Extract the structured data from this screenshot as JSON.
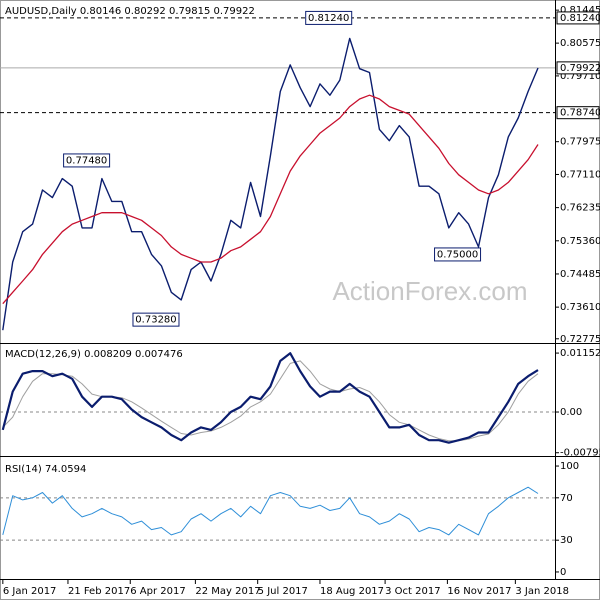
{
  "chart_data": [
    {
      "type": "line",
      "title": "AUDUSD,Daily  0.80146 0.80292 0.79815 0.79922",
      "watermark": "ActionForex.com",
      "x": [
        "2017-01-06",
        "2017-01-13",
        "2017-01-20",
        "2017-01-27",
        "2017-02-03",
        "2017-02-10",
        "2017-02-17",
        "2017-02-24",
        "2017-03-03",
        "2017-03-10",
        "2017-03-17",
        "2017-03-24",
        "2017-03-31",
        "2017-04-07",
        "2017-04-14",
        "2017-04-21",
        "2017-04-28",
        "2017-05-05",
        "2017-05-12",
        "2017-05-19",
        "2017-05-26",
        "2017-06-02",
        "2017-06-09",
        "2017-06-16",
        "2017-06-23",
        "2017-06-30",
        "2017-07-07",
        "2017-07-14",
        "2017-07-21",
        "2017-07-28",
        "2017-08-04",
        "2017-08-11",
        "2017-08-18",
        "2017-08-25",
        "2017-09-01",
        "2017-09-08",
        "2017-09-15",
        "2017-09-22",
        "2017-09-29",
        "2017-10-06",
        "2017-10-13",
        "2017-10-20",
        "2017-10-27",
        "2017-11-03",
        "2017-11-10",
        "2017-11-17",
        "2017-11-24",
        "2017-12-01",
        "2017-12-08",
        "2017-12-15",
        "2017-12-22",
        "2017-12-29",
        "2018-01-05",
        "2018-01-12",
        "2018-01-19"
      ],
      "series": [
        {
          "name": "AUDUSD",
          "color": "#0b1d6e",
          "width": 1.4,
          "values": [
            0.73,
            0.748,
            0.756,
            0.758,
            0.767,
            0.765,
            0.77,
            0.768,
            0.757,
            0.757,
            0.77,
            0.764,
            0.764,
            0.756,
            0.756,
            0.75,
            0.747,
            0.74,
            0.738,
            0.746,
            0.748,
            0.743,
            0.75,
            0.759,
            0.757,
            0.769,
            0.76,
            0.776,
            0.793,
            0.8,
            0.794,
            0.789,
            0.795,
            0.792,
            0.796,
            0.807,
            0.799,
            0.798,
            0.783,
            0.78,
            0.784,
            0.781,
            0.768,
            0.768,
            0.766,
            0.757,
            0.761,
            0.758,
            0.752,
            0.765,
            0.771,
            0.781,
            0.786,
            0.793,
            0.7992
          ]
        },
        {
          "name": "MA",
          "color": "#c8102e",
          "width": 1.3,
          "values": [
            0.737,
            0.74,
            0.743,
            0.746,
            0.75,
            0.753,
            0.756,
            0.758,
            0.759,
            0.76,
            0.761,
            0.761,
            0.761,
            0.76,
            0.759,
            0.757,
            0.755,
            0.752,
            0.75,
            0.749,
            0.748,
            0.748,
            0.749,
            0.751,
            0.752,
            0.754,
            0.756,
            0.76,
            0.766,
            0.772,
            0.776,
            0.779,
            0.782,
            0.784,
            0.786,
            0.789,
            0.791,
            0.792,
            0.791,
            0.789,
            0.788,
            0.787,
            0.784,
            0.781,
            0.778,
            0.774,
            0.771,
            0.769,
            0.767,
            0.766,
            0.767,
            0.769,
            0.772,
            0.775,
            0.779
          ]
        }
      ],
      "xlim": [
        "2017-01-04",
        "2018-01-31"
      ],
      "ylim": [
        0.7269,
        0.8166
      ],
      "yticks": [
        0.81445,
        0.80575,
        {
          "value": 0.7971,
          "label": "0.79710"
        },
        0.77975,
        {
          "value": 0.7711,
          "label": "0.77110"
        },
        0.76235,
        {
          "value": 0.7536,
          "label": "0.75360"
        },
        0.74485,
        {
          "value": 0.7361,
          "label": "0.73610"
        },
        0.72775
      ],
      "levels": [
        {
          "value": 0.8124,
          "label": "0.81240",
          "style": "dashed"
        },
        {
          "value": 0.79922,
          "label": "0.79922",
          "style": "solid"
        },
        {
          "value": 0.7874,
          "label": "0.78740",
          "style": "dashed"
        }
      ],
      "annotations": [
        {
          "x": "2017-09-08",
          "value": 0.8124,
          "label": "0.81240"
        },
        {
          "x": "2017-03-21",
          "value": 0.7748,
          "label": "0.77480"
        },
        {
          "x": "2017-05-09",
          "value": 0.7328,
          "label": "0.73280"
        },
        {
          "x": "2017-12-08",
          "value": 0.75,
          "label": "0.75000"
        }
      ]
    },
    {
      "type": "line",
      "title": "MACD(12,26,9) 0.008209 0.007476",
      "x": [
        "2017-01-06",
        "2017-01-13",
        "2017-01-20",
        "2017-01-27",
        "2017-02-03",
        "2017-02-10",
        "2017-02-17",
        "2017-02-24",
        "2017-03-03",
        "2017-03-10",
        "2017-03-17",
        "2017-03-24",
        "2017-03-31",
        "2017-04-07",
        "2017-04-14",
        "2017-04-21",
        "2017-04-28",
        "2017-05-05",
        "2017-05-12",
        "2017-05-19",
        "2017-05-26",
        "2017-06-02",
        "2017-06-09",
        "2017-06-16",
        "2017-06-23",
        "2017-06-30",
        "2017-07-07",
        "2017-07-14",
        "2017-07-21",
        "2017-07-28",
        "2017-08-04",
        "2017-08-11",
        "2017-08-18",
        "2017-08-25",
        "2017-09-01",
        "2017-09-08",
        "2017-09-15",
        "2017-09-22",
        "2017-09-29",
        "2017-10-06",
        "2017-10-13",
        "2017-10-20",
        "2017-10-27",
        "2017-11-03",
        "2017-11-10",
        "2017-11-17",
        "2017-11-24",
        "2017-12-01",
        "2017-12-08",
        "2017-12-15",
        "2017-12-22",
        "2017-12-29",
        "2018-01-05",
        "2018-01-12",
        "2018-01-19"
      ],
      "series": [
        {
          "name": "Signal",
          "color": "#a0a0a0",
          "width": 1,
          "values": [
            -0.003,
            -0.001,
            0.003,
            0.006,
            0.0075,
            0.0075,
            0.0073,
            0.007,
            0.0055,
            0.0035,
            0.003,
            0.003,
            0.0028,
            0.002,
            0.0008,
            -0.0005,
            -0.0018,
            -0.003,
            -0.0042,
            -0.0045,
            -0.004,
            -0.0037,
            -0.003,
            -0.002,
            -0.0008,
            0.001,
            0.002,
            0.0035,
            0.0065,
            0.0095,
            0.01,
            0.008,
            0.0055,
            0.0045,
            0.004,
            0.0045,
            0.0048,
            0.004,
            0.002,
            -0.0005,
            -0.002,
            -0.0025,
            -0.0035,
            -0.0045,
            -0.0052,
            -0.0056,
            -0.0056,
            -0.0053,
            -0.0047,
            -0.0043,
            -0.0025,
            0.0,
            0.0035,
            0.006,
            0.0075
          ]
        },
        {
          "name": "MACD",
          "color": "#0b1d6e",
          "width": 2.2,
          "values": [
            -0.0035,
            0.004,
            0.0075,
            0.008,
            0.008,
            0.007,
            0.0075,
            0.0065,
            0.003,
            0.001,
            0.003,
            0.003,
            0.0025,
            0.0005,
            -0.001,
            -0.002,
            -0.003,
            -0.0045,
            -0.0055,
            -0.004,
            -0.003,
            -0.0035,
            -0.002,
            0.0,
            0.001,
            0.003,
            0.0025,
            0.005,
            0.01,
            0.0115,
            0.008,
            0.005,
            0.003,
            0.004,
            0.004,
            0.0055,
            0.004,
            0.003,
            0.0,
            -0.003,
            -0.003,
            -0.0025,
            -0.0045,
            -0.0055,
            -0.0055,
            -0.006,
            -0.0055,
            -0.005,
            -0.004,
            -0.004,
            -0.001,
            0.002,
            0.0055,
            0.007,
            0.0082
          ]
        }
      ],
      "xlim": [
        "2017-01-04",
        "2018-01-31"
      ],
      "ylim": [
        -0.0084,
        0.0131
      ],
      "yticks": [
        0.011521,
        {
          "value": 0,
          "label": "0.00"
        },
        -0.007956
      ],
      "ref_lines": [
        0
      ]
    },
    {
      "type": "line",
      "title": "RSI(14) 74.0594",
      "x": [
        "2017-01-06",
        "2017-01-13",
        "2017-01-20",
        "2017-01-27",
        "2017-02-03",
        "2017-02-10",
        "2017-02-17",
        "2017-02-24",
        "2017-03-03",
        "2017-03-10",
        "2017-03-17",
        "2017-03-24",
        "2017-03-31",
        "2017-04-07",
        "2017-04-14",
        "2017-04-21",
        "2017-04-28",
        "2017-05-05",
        "2017-05-12",
        "2017-05-19",
        "2017-05-26",
        "2017-06-02",
        "2017-06-09",
        "2017-06-16",
        "2017-06-23",
        "2017-06-30",
        "2017-07-07",
        "2017-07-14",
        "2017-07-21",
        "2017-07-28",
        "2017-08-04",
        "2017-08-11",
        "2017-08-18",
        "2017-08-25",
        "2017-09-01",
        "2017-09-08",
        "2017-09-15",
        "2017-09-22",
        "2017-09-29",
        "2017-10-06",
        "2017-10-13",
        "2017-10-20",
        "2017-10-27",
        "2017-11-03",
        "2017-11-10",
        "2017-11-17",
        "2017-11-24",
        "2017-12-01",
        "2017-12-08",
        "2017-12-15",
        "2017-12-22",
        "2017-12-29",
        "2018-01-05",
        "2018-01-12",
        "2018-01-19"
      ],
      "series": [
        {
          "name": "RSI",
          "color": "#2f8fd8",
          "width": 1,
          "values": [
            35,
            72,
            68,
            70,
            75,
            65,
            72,
            60,
            52,
            55,
            60,
            55,
            52,
            45,
            48,
            40,
            42,
            35,
            38,
            50,
            55,
            48,
            55,
            60,
            52,
            62,
            55,
            72,
            75,
            72,
            62,
            60,
            63,
            58,
            60,
            70,
            55,
            52,
            45,
            48,
            55,
            50,
            38,
            42,
            40,
            35,
            45,
            40,
            35,
            55,
            62,
            70,
            75,
            80,
            74.0594
          ]
        }
      ],
      "xlim": [
        "2017-01-04",
        "2018-01-31"
      ],
      "ylim": [
        -5.7,
        105.7
      ],
      "yticks": [
        100,
        70,
        30,
        0
      ],
      "ref_lines": [
        70,
        30
      ],
      "xticks": [
        {
          "value": "2017-01-06",
          "label": "6 Jan 2017"
        },
        {
          "value": "2017-02-21",
          "label": "21 Feb 2017"
        },
        {
          "value": "2017-04-06",
          "label": "6 Apr 2017"
        },
        {
          "value": "2017-05-22",
          "label": "22 May 2017"
        },
        {
          "value": "2017-07-05",
          "label": "5 Jul 2017"
        },
        {
          "value": "2017-08-18",
          "label": "18 Aug 2017"
        },
        {
          "value": "2017-10-03",
          "label": "3 Oct 2017"
        },
        {
          "value": "2017-11-16",
          "label": "16 Nov 2017"
        },
        {
          "value": "2018-01-03",
          "label": "3 Jan 2018"
        }
      ]
    }
  ]
}
